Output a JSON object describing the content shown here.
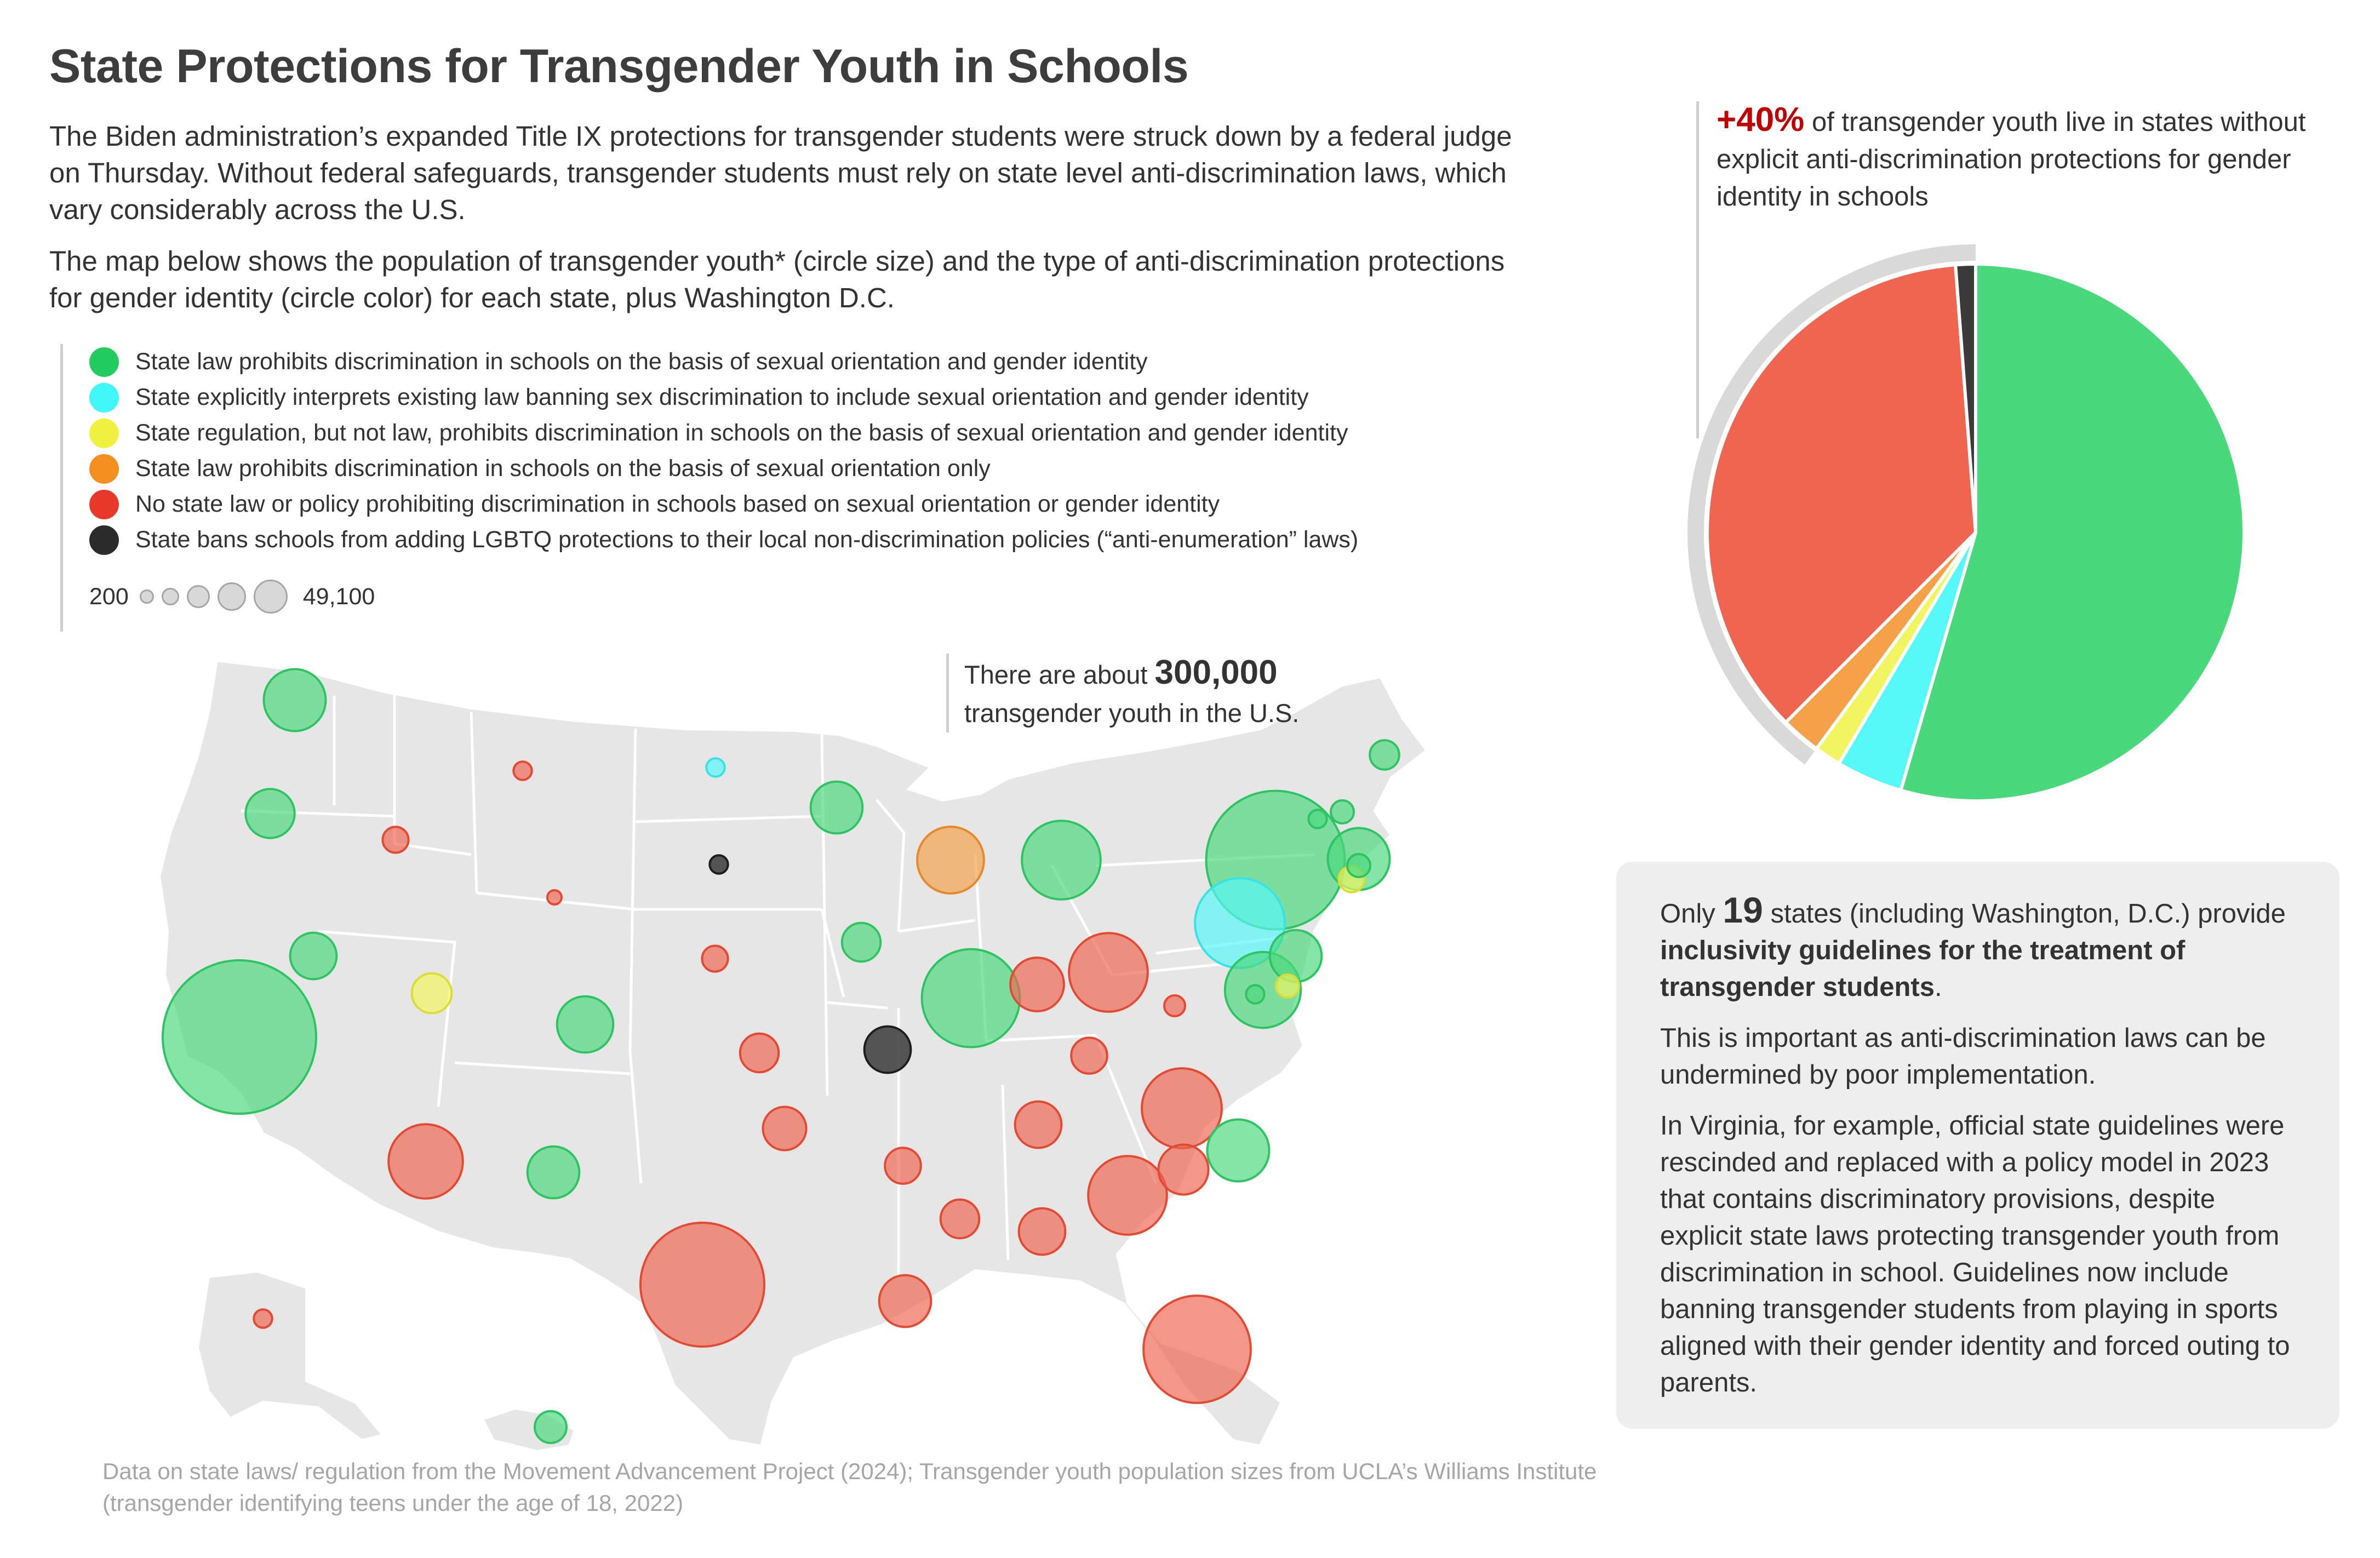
{
  "header": {
    "title": "State Protections for Transgender Youth in Schools",
    "intro_1": "The Biden administration’s expanded Title IX protections for transgender students were struck down by a federal judge on Thursday. Without federal safeguards, transgender students must rely on state level anti-discrimination laws, which vary considerably across the U.S.",
    "intro_2": "The map below shows the population of transgender youth* (circle size) and the type of anti-discrimination protections for gender identity (circle color) for each state, plus Washington D.C."
  },
  "legend": {
    "items": [
      {
        "label": "State law prohibits discrimination in schools on the basis of sexual orientation and gender identity",
        "color": "#22cc5e"
      },
      {
        "label": "State explicitly interprets existing law banning sex discrimination to include sexual orientation and gender identity",
        "color": "#3ff7f7"
      },
      {
        "label": "State regulation, but not law, prohibits discrimination in schools on the basis of sexual orientation and gender identity",
        "color": "#eef23e"
      },
      {
        "label": "State law prohibits discrimination in schools on the basis of sexual orientation only",
        "color": "#f39020"
      },
      {
        "label": "No state law or policy prohibiting discrimination in schools based on sexual orientation or gender identity",
        "color": "#e8392a"
      },
      {
        "label": "State bans schools from adding LGBTQ protections to their local non-discrimination policies (“anti-enumeration” laws)",
        "color": "#2b2b2b"
      }
    ],
    "size_min_label": "200",
    "size_max_label": "49,100"
  },
  "callouts": {
    "total_prefix": "There are about",
    "total_value": "300,000",
    "total_suffix": "transgender youth in the U.S.",
    "pct_value": "+40%",
    "pct_text": "of transgender youth live in states without explicit anti-discrimination protections for gender identity in schools"
  },
  "info_box": {
    "p1_prefix": "Only",
    "p1_number": "19",
    "p1_middle": "states (including Washington, D.C.) provide",
    "p1_bold": "inclusivity guidelines for the treatment of transgender students",
    "p1_end": ".",
    "p2": "This is important as anti-discrimination laws can be undermined by poor implementation.",
    "p3": "In Virginia, for example, official state guidelines were rescinded and replaced with a policy model in 2023 that contains discriminatory provisions, despite explicit state laws protecting transgender youth from discrimination in school. Guidelines now include banning transgender students from playing in sports aligned with their gender identity and forced outing to parents."
  },
  "source": "Data on state laws/ regulation from the Movement Advancement Project (2024); Transgender youth population sizes from UCLA’s Williams Institute (transgender identifying teens under the age of 18, 2022)",
  "chart_data": [
    {
      "type": "pie",
      "categories": [
        "Sexual orientation and gender identity (law)",
        "Interpretation of sex discrimination law",
        "Regulation only",
        "Sexual orientation only",
        "No protection",
        "Anti-enumeration law"
      ],
      "values": [
        54.5,
        4.0,
        1.6,
        2.4,
        36.3,
        1.2
      ],
      "colors": [
        "#49d97c",
        "#55f7f7",
        "#f1f55f",
        "#f4a14a",
        "#ef654f",
        "#3a3a3a"
      ],
      "title": ""
    },
    {
      "type": "scatter",
      "title": "",
      "size_range_label": [
        "200",
        "49,100"
      ],
      "states": [
        {
          "state": "WA",
          "category": 0,
          "value": 8000
        },
        {
          "state": "OR",
          "category": 0,
          "value": 5000
        },
        {
          "state": "CA",
          "category": 0,
          "value": 49100
        },
        {
          "state": "NV",
          "category": 0,
          "value": 4500
        },
        {
          "state": "ID",
          "category": 4,
          "value": 1400
        },
        {
          "state": "MT",
          "category": 4,
          "value": 700
        },
        {
          "state": "WY",
          "category": 4,
          "value": 300
        },
        {
          "state": "UT",
          "category": 2,
          "value": 3300
        },
        {
          "state": "CO",
          "category": 0,
          "value": 6600
        },
        {
          "state": "AZ",
          "category": 4,
          "value": 11500
        },
        {
          "state": "NM",
          "category": 0,
          "value": 5600
        },
        {
          "state": "ND",
          "category": 1,
          "value": 700
        },
        {
          "state": "SD",
          "category": 5,
          "value": 700
        },
        {
          "state": "NE",
          "category": 4,
          "value": 1400
        },
        {
          "state": "KS",
          "category": 4,
          "value": 3100
        },
        {
          "state": "OK",
          "category": 4,
          "value": 3900
        },
        {
          "state": "TX",
          "category": 4,
          "value": 32000
        },
        {
          "state": "MN",
          "category": 0,
          "value": 5600
        },
        {
          "state": "IA",
          "category": 0,
          "value": 3100
        },
        {
          "state": "MO",
          "category": 5,
          "value": 4500
        },
        {
          "state": "AR",
          "category": 4,
          "value": 2700
        },
        {
          "state": "LA",
          "category": 4,
          "value": 5600
        },
        {
          "state": "WI",
          "category": 3,
          "value": 9300
        },
        {
          "state": "IL",
          "category": 0,
          "value": 20000
        },
        {
          "state": "MI",
          "category": 0,
          "value": 12900
        },
        {
          "state": "IN",
          "category": 4,
          "value": 6000
        },
        {
          "state": "OH",
          "category": 4,
          "value": 12900
        },
        {
          "state": "KY",
          "category": 4,
          "value": 2700
        },
        {
          "state": "TN",
          "category": 4,
          "value": 4500
        },
        {
          "state": "MS",
          "category": 4,
          "value": 3100
        },
        {
          "state": "AL",
          "category": 4,
          "value": 4500
        },
        {
          "state": "GA",
          "category": 4,
          "value": 12900
        },
        {
          "state": "FL",
          "category": 4,
          "value": 24000
        },
        {
          "state": "SC",
          "category": 4,
          "value": 5200
        },
        {
          "state": "NC",
          "category": 4,
          "value": 13300
        },
        {
          "state": "VA",
          "category": 0,
          "value": 8000
        },
        {
          "state": "WV",
          "category": 4,
          "value": 900
        },
        {
          "state": "PA",
          "category": 1,
          "value": 16800
        },
        {
          "state": "NY",
          "category": 0,
          "value": 40000
        },
        {
          "state": "MD",
          "category": 0,
          "value": 12000
        },
        {
          "state": "DE",
          "category": 2,
          "value": 1100
        },
        {
          "state": "DC",
          "category": 0,
          "value": 700
        },
        {
          "state": "NJ",
          "category": 0,
          "value": 5600
        },
        {
          "state": "CT",
          "category": 2,
          "value": 1400
        },
        {
          "state": "RI",
          "category": 0,
          "value": 1100
        },
        {
          "state": "MA",
          "category": 0,
          "value": 8000
        },
        {
          "state": "NH",
          "category": 0,
          "value": 1100
        },
        {
          "state": "VT",
          "category": 0,
          "value": 700
        },
        {
          "state": "ME",
          "category": 0,
          "value": 1800
        },
        {
          "state": "AK",
          "category": 4,
          "value": 700
        },
        {
          "state": "HI",
          "category": 0,
          "value": 2100
        }
      ]
    }
  ]
}
